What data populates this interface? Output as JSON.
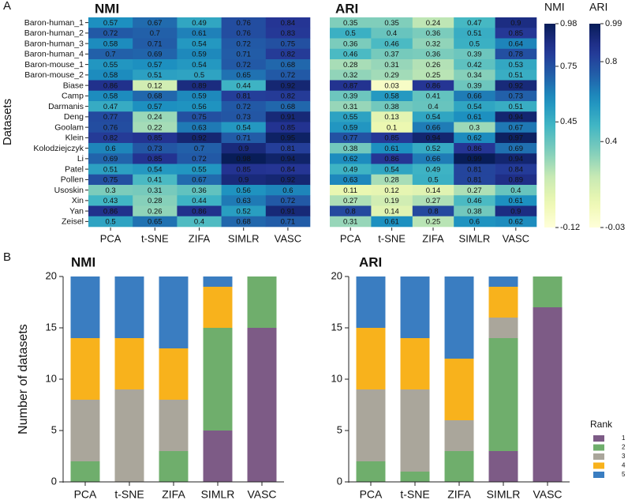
{
  "chart_data": [
    {
      "type": "heatmap",
      "panel": "A",
      "title": "NMI",
      "ylabel": "Datasets",
      "categories": [
        "PCA",
        "t-SNE",
        "ZIFA",
        "SIMLR",
        "VASC"
      ],
      "rows": [
        "Baron-human_1",
        "Baron-human_2",
        "Baron-human_3",
        "Baron-human_4",
        "Baron-mouse_1",
        "Baron-mouse_2",
        "Biase",
        "Camp",
        "Darmanis",
        "Deng",
        "Goolam",
        "Klein",
        "Kolodziejczyk",
        "Li",
        "Patel",
        "Pollen",
        "Usoskin",
        "Xin",
        "Yan",
        "Zeisel"
      ],
      "values": [
        [
          0.57,
          0.67,
          0.49,
          0.76,
          0.84
        ],
        [
          0.72,
          0.7,
          0.61,
          0.76,
          0.83
        ],
        [
          0.58,
          0.71,
          0.54,
          0.72,
          0.75
        ],
        [
          0.7,
          0.69,
          0.59,
          0.71,
          0.82
        ],
        [
          0.55,
          0.57,
          0.54,
          0.72,
          0.68
        ],
        [
          0.58,
          0.51,
          0.5,
          0.65,
          0.72
        ],
        [
          0.86,
          0.12,
          0.89,
          0.44,
          0.92
        ],
        [
          0.58,
          0.68,
          0.59,
          0.81,
          0.82
        ],
        [
          0.47,
          0.57,
          0.56,
          0.72,
          0.68
        ],
        [
          0.77,
          0.24,
          0.75,
          0.73,
          0.91
        ],
        [
          0.76,
          0.22,
          0.63,
          0.54,
          0.85
        ],
        [
          0.82,
          0.85,
          0.92,
          0.71,
          0.95
        ],
        [
          0.6,
          0.73,
          0.7,
          0.9,
          0.81
        ],
        [
          0.69,
          0.85,
          0.72,
          0.98,
          0.94
        ],
        [
          0.51,
          0.54,
          0.55,
          0.85,
          0.84
        ],
        [
          0.75,
          0.41,
          0.67,
          0.9,
          0.92
        ],
        [
          0.3,
          0.31,
          0.36,
          0.56,
          0.6
        ],
        [
          0.43,
          0.28,
          0.44,
          0.63,
          0.72
        ],
        [
          0.86,
          0.26,
          0.86,
          0.52,
          0.91
        ],
        [
          0.5,
          0.65,
          0.4,
          0.68,
          0.71
        ]
      ],
      "colorbar_label": "NMI",
      "clim": [
        -0.12,
        0.98
      ],
      "cticks": [
        -0.12,
        0.45,
        0.75,
        0.98
      ],
      "colormap": "YlGnBu"
    },
    {
      "type": "heatmap",
      "title": "ARI",
      "categories": [
        "PCA",
        "t-SNE",
        "ZIFA",
        "SIMLR",
        "VASC"
      ],
      "values": [
        [
          0.35,
          0.35,
          0.24,
          0.47,
          0.9
        ],
        [
          0.5,
          0.4,
          0.36,
          0.51,
          0.85
        ],
        [
          0.36,
          0.46,
          0.32,
          0.5,
          0.64
        ],
        [
          0.46,
          0.37,
          0.36,
          0.39,
          0.78
        ],
        [
          0.28,
          0.31,
          0.26,
          0.42,
          0.53
        ],
        [
          0.32,
          0.29,
          0.25,
          0.34,
          0.51
        ],
        [
          0.87,
          0.03,
          0.86,
          0.39,
          0.92
        ],
        [
          0.39,
          0.58,
          0.41,
          0.66,
          0.73
        ],
        [
          0.31,
          0.38,
          0.4,
          0.54,
          0.51
        ],
        [
          0.55,
          0.13,
          0.54,
          0.61,
          0.94
        ],
        [
          0.59,
          0.1,
          0.66,
          0.3,
          0.67
        ],
        [
          0.77,
          0.85,
          0.94,
          0.62,
          0.97
        ],
        [
          0.38,
          0.61,
          0.52,
          0.86,
          0.69
        ],
        [
          0.62,
          0.86,
          0.66,
          0.99,
          0.94
        ],
        [
          0.49,
          0.54,
          0.49,
          0.81,
          0.84
        ],
        [
          0.63,
          0.28,
          0.5,
          0.81,
          0.89
        ],
        [
          0.11,
          0.12,
          0.14,
          0.27,
          0.4
        ],
        [
          0.27,
          0.19,
          0.27,
          0.46,
          0.61
        ],
        [
          0.8,
          0.14,
          0.8,
          0.38,
          0.9
        ],
        [
          0.31,
          0.61,
          0.25,
          0.6,
          0.62
        ]
      ],
      "colorbar_label": "ARI",
      "clim": [
        -0.03,
        0.99
      ],
      "cticks": [
        -0.03,
        0.4,
        0.8,
        0.99
      ],
      "colormap": "YlGnBu"
    },
    {
      "type": "stacked_bar",
      "panel": "B",
      "title": "NMI",
      "ylabel": "Number of datasets",
      "categories": [
        "PCA",
        "t-SNE",
        "ZIFA",
        "SIMLR",
        "VASC"
      ],
      "series": [
        {
          "name": "1",
          "color": "#7d5b86",
          "values": [
            0,
            0,
            0,
            5,
            15
          ]
        },
        {
          "name": "2",
          "color": "#6fae6c",
          "values": [
            2,
            0,
            3,
            10,
            5
          ]
        },
        {
          "name": "3",
          "color": "#aaa69b",
          "values": [
            6,
            9,
            5,
            0,
            0
          ]
        },
        {
          "name": "4",
          "color": "#f8b21c",
          "values": [
            6,
            5,
            5,
            4,
            0
          ]
        },
        {
          "name": "5",
          "color": "#3a7dc1",
          "values": [
            6,
            6,
            7,
            1,
            0
          ]
        }
      ],
      "ylim": [
        0,
        20
      ],
      "yticks": [
        0,
        5,
        10,
        15,
        20
      ]
    },
    {
      "type": "stacked_bar",
      "title": "ARI",
      "categories": [
        "PCA",
        "t-SNE",
        "ZIFA",
        "SIMLR",
        "VASC"
      ],
      "series": [
        {
          "name": "1",
          "color": "#7d5b86",
          "values": [
            0,
            0,
            0,
            3,
            17
          ]
        },
        {
          "name": "2",
          "color": "#6fae6c",
          "values": [
            2,
            1,
            3,
            11,
            3
          ]
        },
        {
          "name": "3",
          "color": "#aaa69b",
          "values": [
            7,
            8,
            3,
            2,
            0
          ]
        },
        {
          "name": "4",
          "color": "#f8b21c",
          "values": [
            6,
            5,
            6,
            3,
            0
          ]
        },
        {
          "name": "5",
          "color": "#3a7dc1",
          "values": [
            5,
            6,
            8,
            1,
            0
          ]
        }
      ],
      "ylim": [
        0,
        20
      ],
      "yticks": [
        0,
        5,
        10,
        15,
        20
      ],
      "legend": "right",
      "legend_title": "Rank"
    }
  ]
}
